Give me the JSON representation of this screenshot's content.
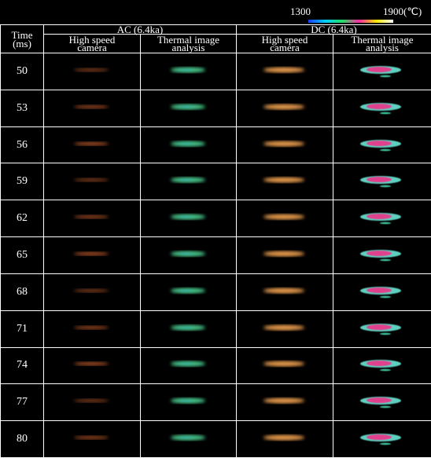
{
  "colorbar": {
    "min_label": "1300",
    "max_label": "1900(℃)"
  },
  "table": {
    "time_header": [
      "Time",
      "(ms)"
    ],
    "groups": [
      "AC (6.4ka)",
      "DC (6.4ka)"
    ],
    "subheaders": [
      "High speed camera",
      "Thermal image analysis",
      "High speed camera",
      "Thermal image analysis"
    ],
    "times": [
      50,
      53,
      56,
      59,
      62,
      65,
      68,
      71,
      74,
      77,
      80
    ]
  }
}
